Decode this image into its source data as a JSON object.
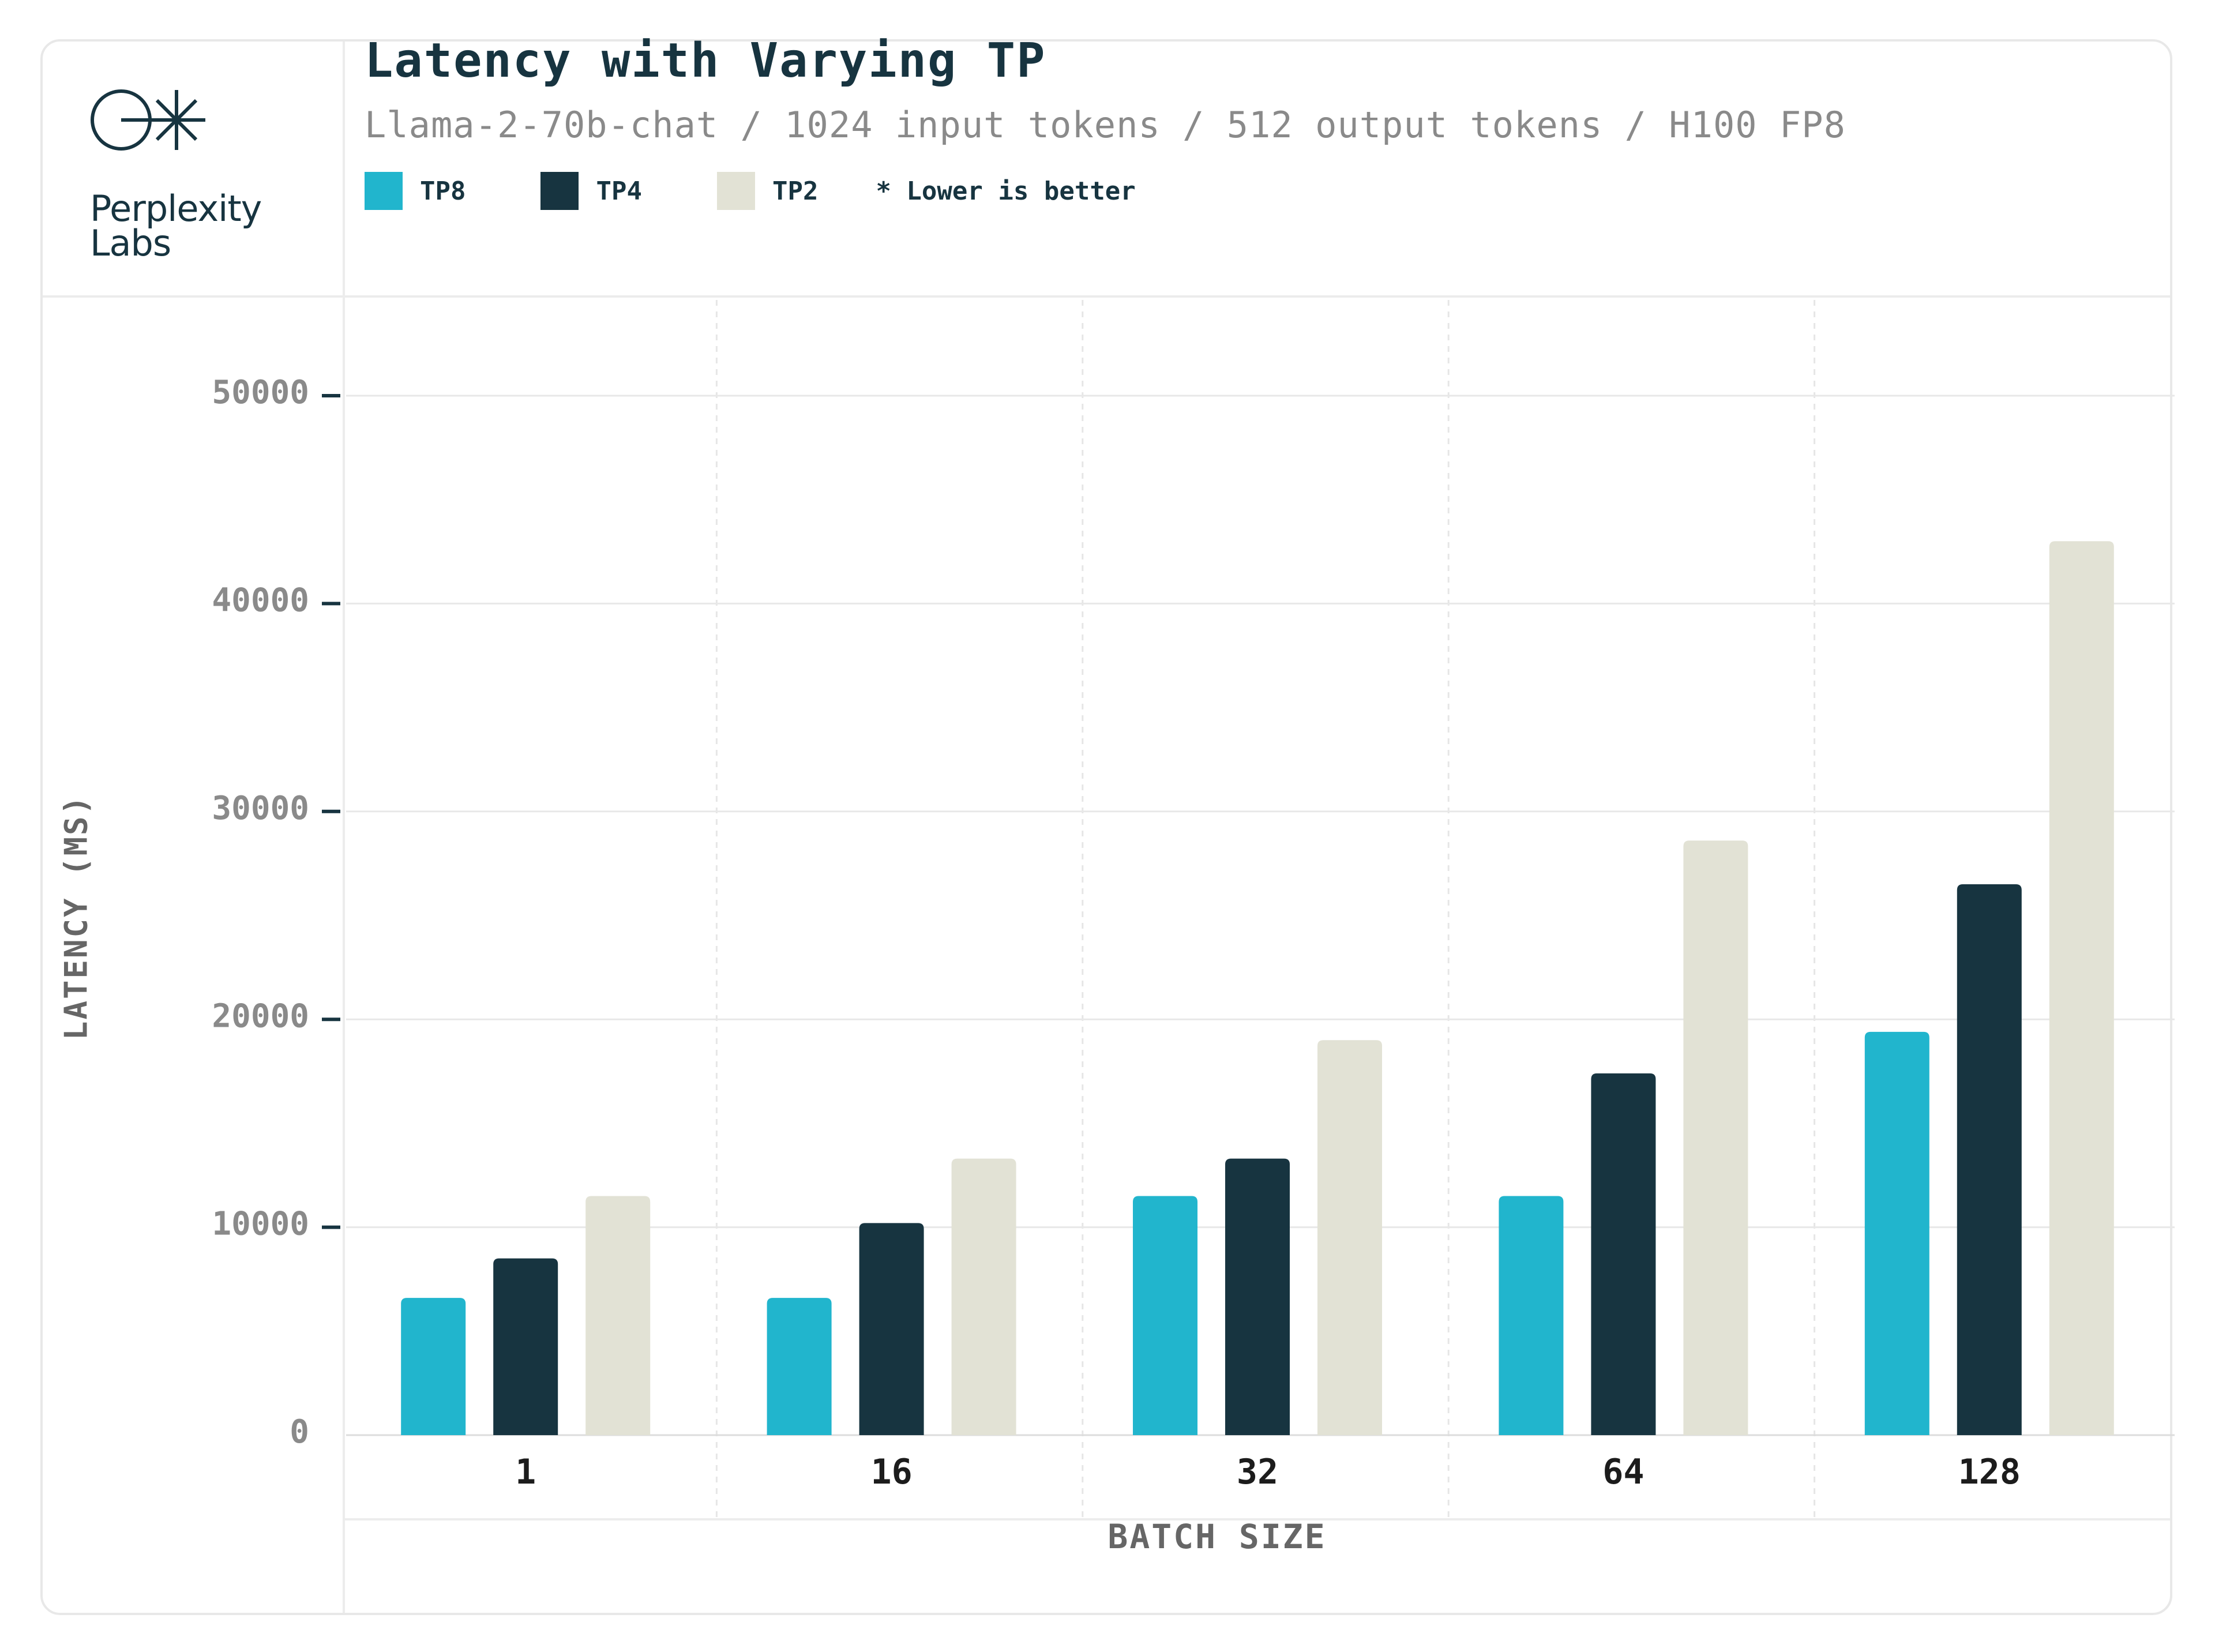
{
  "brand": {
    "name": "Perplexity\nLabs",
    "logo_icon": "perplexity-logo-icon"
  },
  "legend": {
    "items": [
      {
        "label": "TP8",
        "color": "#21b5cd"
      },
      {
        "label": "TP4",
        "color": "#173440"
      },
      {
        "label": "TP2",
        "color": "#e2e2d5"
      }
    ],
    "note": "* Lower is better"
  },
  "chart_data": {
    "type": "bar",
    "title": "Latency with Varying TP",
    "subtitle": "Llama-2-70b-chat / 1024 input tokens / 512 output tokens / H100 FP8",
    "xlabel": "BATCH SIZE",
    "ylabel": "LATENCY (MS)",
    "categories": [
      "1",
      "16",
      "32",
      "64",
      "128"
    ],
    "series": [
      {
        "name": "TP8",
        "color": "#21b5cd",
        "values": [
          6600,
          6600,
          11500,
          11500,
          19400
        ]
      },
      {
        "name": "TP4",
        "color": "#173440",
        "values": [
          8500,
          10200,
          13300,
          17400,
          26500
        ]
      },
      {
        "name": "TP2",
        "color": "#e2e2d5",
        "values": [
          11500,
          13300,
          19000,
          28600,
          43000
        ]
      }
    ],
    "ylim": [
      0,
      50000
    ],
    "yticks": [
      0,
      10000,
      20000,
      30000,
      40000,
      50000
    ],
    "grid": true,
    "legend_position": "top-left"
  }
}
